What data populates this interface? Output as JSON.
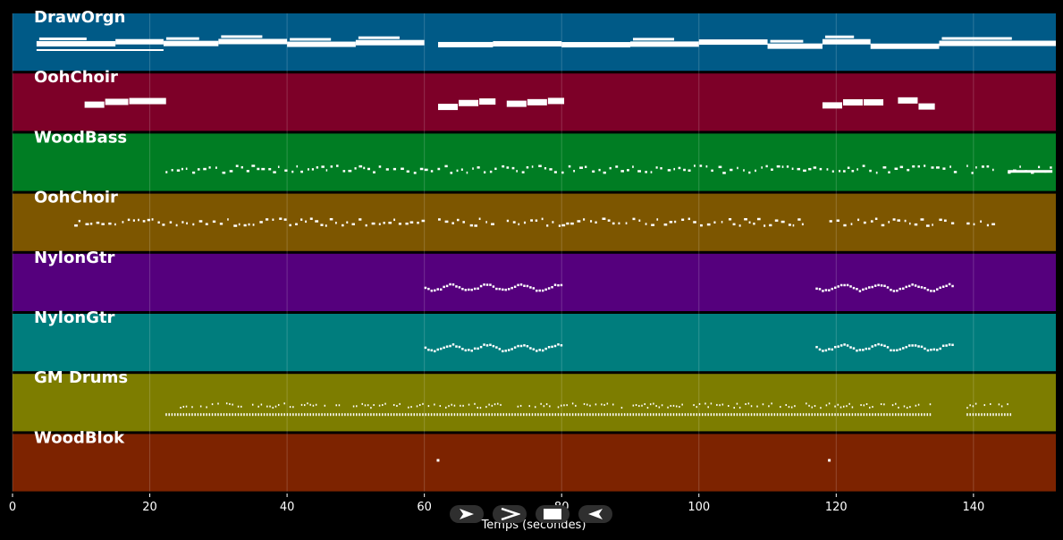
{
  "title": "",
  "axis": {
    "xlabel": "Temps (secondes)",
    "ticks": [
      "0",
      "20",
      "40",
      "60",
      "80",
      "100",
      "120",
      "140"
    ],
    "tick_values": [
      0,
      20,
      40,
      60,
      80,
      100,
      120,
      140
    ],
    "xmax": 152
  },
  "tracks": [
    {
      "name": "DrawOrgn",
      "color": "#005a87",
      "style": "sustain"
    },
    {
      "name": "OohChoir",
      "color": "#7d0028",
      "style": "blocks"
    },
    {
      "name": "WoodBass",
      "color": "#007d23",
      "style": "dots"
    },
    {
      "name": "OohChoir",
      "color": "#7d5600",
      "style": "dots"
    },
    {
      "name": "NylonGtr",
      "color": "#55007d",
      "style": "melody"
    },
    {
      "name": "NylonGtr",
      "color": "#007d7d",
      "style": "melody"
    },
    {
      "name": "GM Drums",
      "color": "#7d7d00",
      "style": "drums"
    },
    {
      "name": "WoodBlok",
      "color": "#7d2300",
      "style": "sparse"
    }
  ],
  "chart_data": {
    "type": "piano-roll",
    "xlabel": "Temps (secondes)",
    "xlim": [
      0,
      152
    ],
    "series": [
      {
        "name": "DrawOrgn",
        "segments": [
          [
            3.5,
            15
          ],
          [
            15,
            22
          ],
          [
            22,
            30
          ],
          [
            30,
            40
          ],
          [
            40,
            50
          ],
          [
            50,
            60
          ],
          [
            62,
            70
          ],
          [
            70,
            80
          ],
          [
            80,
            90
          ],
          [
            90,
            100
          ],
          [
            100,
            110
          ],
          [
            110,
            118
          ],
          [
            118,
            125
          ],
          [
            125,
            135
          ],
          [
            135,
            152
          ]
        ]
      },
      {
        "name": "OohChoir",
        "segments": [
          [
            10.5,
            13.5
          ],
          [
            13.5,
            17
          ],
          [
            17,
            22.5
          ],
          [
            62,
            65
          ],
          [
            65,
            68
          ],
          [
            68,
            70.5
          ],
          [
            72,
            75
          ],
          [
            75,
            78
          ],
          [
            78,
            80.5
          ],
          [
            118,
            121
          ],
          [
            121,
            124
          ],
          [
            124,
            127
          ],
          [
            129,
            132
          ],
          [
            132,
            134.5
          ]
        ]
      },
      {
        "name": "WoodBass",
        "segments": [
          [
            22.3,
            138
          ],
          [
            139,
            143
          ],
          [
            145,
            151.5
          ]
        ]
      },
      {
        "name": "OohChoir",
        "segments": [
          [
            9,
            60
          ],
          [
            62,
            70
          ],
          [
            72,
            80
          ],
          [
            80,
            115
          ],
          [
            119,
            137
          ],
          [
            139,
            143
          ]
        ]
      },
      {
        "name": "NylonGtr",
        "segments": [
          [
            60,
            80
          ],
          [
            117,
            137
          ]
        ]
      },
      {
        "name": "NylonGtr",
        "segments": [
          [
            60,
            80
          ],
          [
            117,
            137
          ]
        ]
      },
      {
        "name": "GM Drums",
        "segments": [
          [
            22.3,
            134
          ],
          [
            139,
            145.5
          ]
        ]
      },
      {
        "name": "WoodBlok",
        "points": [
          61.8,
          118.8
        ]
      }
    ]
  },
  "controls": [
    {
      "name": "play-button",
      "icon": "play-icon"
    },
    {
      "name": "forward-button",
      "icon": "forward-icon"
    },
    {
      "name": "stop-button",
      "icon": "stop-icon"
    },
    {
      "name": "back-button",
      "icon": "back-icon"
    }
  ]
}
